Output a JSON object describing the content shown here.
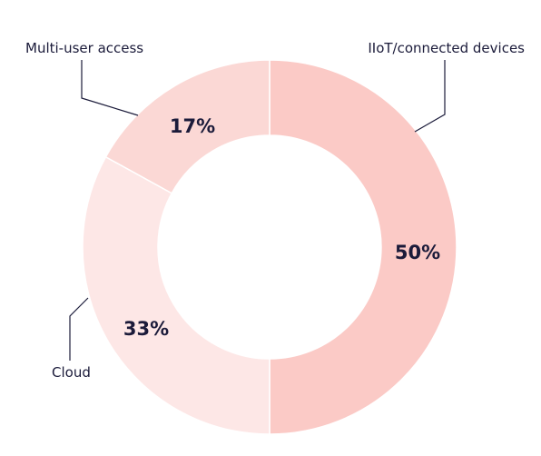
{
  "chart_data": {
    "type": "pie",
    "style": "donut",
    "legend": "none",
    "slices": [
      {
        "label": "IIoT/connected devices",
        "value": 50,
        "value_label": "50%",
        "color": "#fbcac6"
      },
      {
        "label": "Cloud",
        "value": 33,
        "value_label": "33%",
        "color": "#fde7e6"
      },
      {
        "label": "Multi-user access",
        "value": 17,
        "value_label": "17%",
        "color": "#fbd8d5"
      }
    ]
  }
}
